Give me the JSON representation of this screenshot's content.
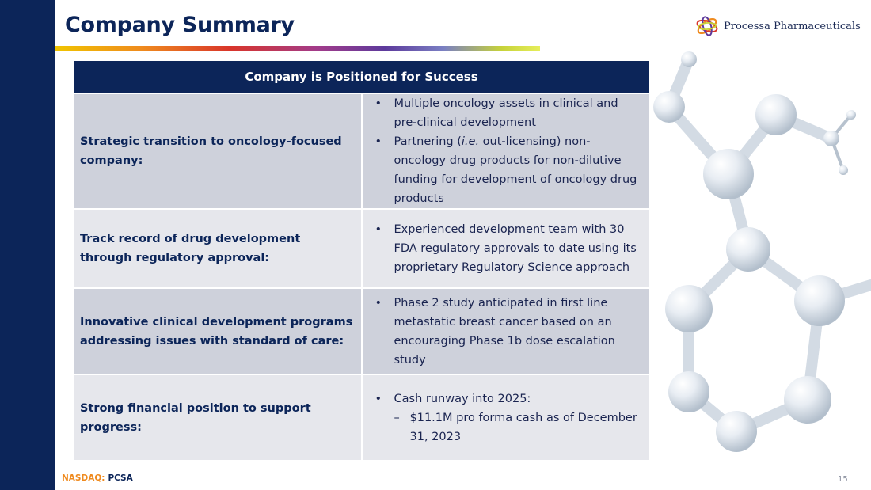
{
  "slide": {
    "title": "Company Summary",
    "logo_text": "Processa Pharmaceuticals",
    "logo_icon": "processa-swirl-logo",
    "page_number": "15",
    "footer": {
      "exchange": "NASDAQ:",
      "ticker": "PCSA"
    }
  },
  "table": {
    "header": "Company is Positioned for Success",
    "rows": [
      {
        "label": "Strategic transition to oncology-focused company:",
        "bullets": [
          {
            "text": "Multiple oncology assets in clinical and pre-clinical development"
          },
          {
            "pre": "Partnering (",
            "italic": "i.e.",
            "post": " out-licensing) non-oncology drug products for non-dilutive funding for development of oncology drug products"
          }
        ]
      },
      {
        "label": "Track record of drug development through regulatory approval:",
        "bullets": [
          {
            "text": "Experienced development team with 30 FDA regulatory approvals to date using its proprietary Regulatory Science approach"
          }
        ]
      },
      {
        "label": "Innovative clinical development programs addressing issues with standard of care:",
        "bullets": [
          {
            "text": "Phase 2 study anticipated in first line metastatic breast cancer based on an encouraging Phase 1b dose escalation study"
          }
        ]
      },
      {
        "label": "Strong financial position to support progress:",
        "bullets": [
          {
            "text": "Cash runway into 2025:"
          }
        ],
        "sub_bullets": [
          {
            "text": "$11.1M pro forma cash as of December 31, 2023"
          }
        ]
      }
    ]
  },
  "colors": {
    "navy": "#0c2559",
    "row_dark": "#ced1db",
    "row_light": "#e6e7ec",
    "exchange_orange": "#ef8a1e"
  }
}
